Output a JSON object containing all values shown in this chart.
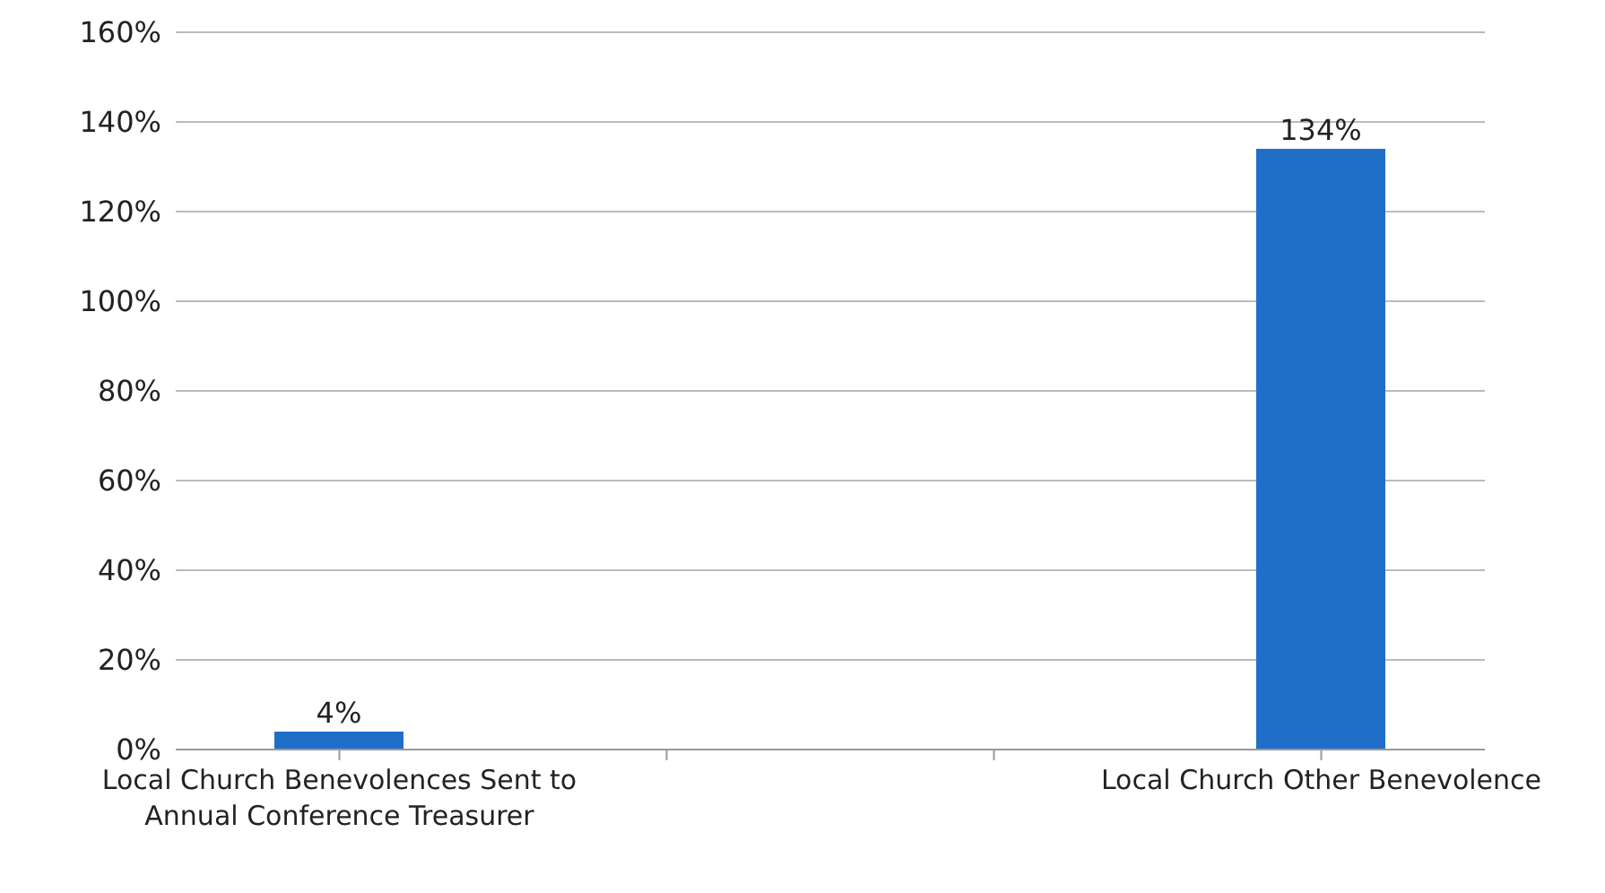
{
  "chart_data": {
    "type": "bar",
    "categories": [
      "Local Church Benevolences Sent to Annual Conference Treasurer",
      null,
      null,
      "Local Church Other Benevolence"
    ],
    "values": [
      4,
      null,
      null,
      134
    ],
    "value_labels": [
      "4%",
      null,
      null,
      "134%"
    ],
    "color": "#1f6fc8",
    "ylim": [
      0,
      160
    ],
    "yticks": [
      {
        "value": 0,
        "label": "0%"
      },
      {
        "value": 20,
        "label": "20%"
      },
      {
        "value": 40,
        "label": "40%"
      },
      {
        "value": 60,
        "label": "60%"
      },
      {
        "value": 80,
        "label": "80%"
      },
      {
        "value": 100,
        "label": "100%"
      },
      {
        "value": 120,
        "label": "120%"
      },
      {
        "value": 140,
        "label": "140%"
      },
      {
        "value": 160,
        "label": "160%"
      }
    ],
    "grid": "y",
    "legend": false
  }
}
